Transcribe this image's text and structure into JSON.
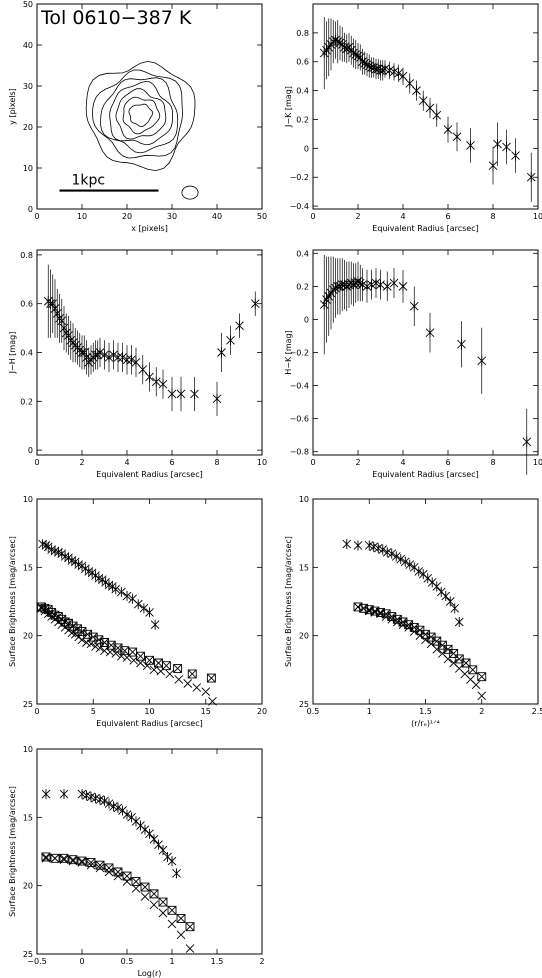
{
  "chart_data": [
    {
      "id": "p1",
      "type": "contour",
      "title": "Tol 0610−387 K",
      "xlabel": "x [pixels]",
      "ylabel": "y [pixels]",
      "xlim": [
        0,
        50
      ],
      "ylim": [
        0,
        50
      ],
      "xticks": [
        0,
        10,
        20,
        30,
        40,
        50
      ],
      "yticks": [
        0,
        10,
        20,
        30,
        40,
        50
      ],
      "scalebar": {
        "label": "1kpc",
        "x": [
          5,
          27
        ],
        "y": 4.5
      },
      "center": [
        23,
        23
      ],
      "contour_radii": [
        2.5,
        4,
        5.5,
        7,
        8.5,
        10,
        12
      ],
      "blobs": [
        {
          "cx": 34,
          "cy": 4,
          "rx": 1.8,
          "ry": 1.6
        }
      ]
    },
    {
      "id": "p2",
      "type": "scatter",
      "xlabel": "Equivalent Radius [arcsec]",
      "ylabel": "J−K [mag]",
      "xlim": [
        0,
        10
      ],
      "ylim": [
        -0.42,
        1.0
      ],
      "xticks": [
        0,
        2,
        4,
        6,
        8,
        10
      ],
      "yticks": [
        -0.4,
        -0.2,
        0.0,
        0.2,
        0.4,
        0.6,
        0.8
      ],
      "x": [
        0.5,
        0.6,
        0.7,
        0.8,
        0.9,
        1.0,
        1.1,
        1.2,
        1.3,
        1.4,
        1.5,
        1.6,
        1.7,
        1.8,
        1.9,
        2.0,
        2.1,
        2.2,
        2.3,
        2.4,
        2.5,
        2.6,
        2.7,
        2.8,
        2.9,
        3.0,
        3.1,
        3.2,
        3.4,
        3.6,
        3.8,
        4.0,
        4.3,
        4.6,
        4.9,
        5.2,
        5.5,
        6.0,
        6.4,
        7.0,
        8.0,
        8.2,
        8.6,
        9.0,
        9.7
      ],
      "y": [
        0.66,
        0.68,
        0.7,
        0.72,
        0.74,
        0.75,
        0.74,
        0.73,
        0.72,
        0.7,
        0.69,
        0.7,
        0.68,
        0.66,
        0.65,
        0.64,
        0.63,
        0.6,
        0.59,
        0.58,
        0.57,
        0.56,
        0.56,
        0.55,
        0.55,
        0.54,
        0.54,
        0.55,
        0.54,
        0.53,
        0.52,
        0.5,
        0.45,
        0.4,
        0.33,
        0.28,
        0.23,
        0.13,
        0.08,
        0.02,
        -0.12,
        0.03,
        0.01,
        -0.05,
        -0.2
      ],
      "err": [
        0.25,
        0.2,
        0.2,
        0.18,
        0.15,
        0.13,
        0.15,
        0.12,
        0.12,
        0.1,
        0.1,
        0.1,
        0.1,
        0.1,
        0.1,
        0.09,
        0.09,
        0.09,
        0.08,
        0.08,
        0.08,
        0.07,
        0.07,
        0.07,
        0.07,
        0.07,
        0.07,
        0.06,
        0.06,
        0.06,
        0.06,
        0.06,
        0.07,
        0.07,
        0.07,
        0.07,
        0.08,
        0.09,
        0.1,
        0.12,
        0.13,
        0.15,
        0.12,
        0.12,
        0.17
      ]
    },
    {
      "id": "p3",
      "type": "scatter",
      "xlabel": "Equivalent Radius [arcsec]",
      "ylabel": "J−H [mag]",
      "xlim": [
        0,
        10
      ],
      "ylim": [
        -0.02,
        0.82
      ],
      "xticks": [
        0,
        2,
        4,
        6,
        8,
        10
      ],
      "yticks": [
        0.0,
        0.2,
        0.4,
        0.6,
        0.8
      ],
      "x": [
        0.5,
        0.6,
        0.7,
        0.8,
        0.9,
        1.0,
        1.1,
        1.2,
        1.3,
        1.4,
        1.5,
        1.6,
        1.7,
        1.8,
        1.9,
        2.0,
        2.1,
        2.2,
        2.3,
        2.4,
        2.5,
        2.6,
        2.7,
        2.8,
        3.0,
        3.2,
        3.4,
        3.6,
        3.8,
        4.0,
        4.2,
        4.4,
        4.7,
        5.0,
        5.3,
        5.6,
        6.0,
        6.4,
        7.0,
        8.0,
        8.2,
        8.6,
        9.0,
        9.7
      ],
      "y": [
        0.61,
        0.6,
        0.6,
        0.58,
        0.56,
        0.54,
        0.53,
        0.5,
        0.48,
        0.47,
        0.45,
        0.44,
        0.43,
        0.42,
        0.41,
        0.4,
        0.4,
        0.38,
        0.36,
        0.37,
        0.38,
        0.39,
        0.39,
        0.4,
        0.39,
        0.38,
        0.39,
        0.38,
        0.38,
        0.37,
        0.37,
        0.36,
        0.33,
        0.3,
        0.28,
        0.27,
        0.23,
        0.23,
        0.23,
        0.21,
        0.4,
        0.45,
        0.51,
        0.6
      ],
      "err": [
        0.15,
        0.14,
        0.12,
        0.12,
        0.1,
        0.1,
        0.09,
        0.09,
        0.08,
        0.08,
        0.08,
        0.08,
        0.07,
        0.07,
        0.07,
        0.07,
        0.07,
        0.07,
        0.06,
        0.06,
        0.06,
        0.06,
        0.06,
        0.06,
        0.06,
        0.06,
        0.06,
        0.06,
        0.06,
        0.06,
        0.06,
        0.06,
        0.06,
        0.06,
        0.06,
        0.06,
        0.07,
        0.07,
        0.07,
        0.07,
        0.08,
        0.06,
        0.05,
        0.05
      ]
    },
    {
      "id": "p4",
      "type": "scatter",
      "xlabel": "Equivalent Radius [arcsec]",
      "ylabel": "H−K [mag]",
      "xlim": [
        0,
        10
      ],
      "ylim": [
        -0.82,
        0.42
      ],
      "xticks": [
        0,
        2,
        4,
        6,
        8,
        10
      ],
      "yticks": [
        -0.8,
        -0.6,
        -0.4,
        -0.2,
        0.0,
        0.2,
        0.4
      ],
      "x": [
        0.5,
        0.6,
        0.7,
        0.8,
        0.9,
        1.0,
        1.1,
        1.2,
        1.3,
        1.4,
        1.5,
        1.6,
        1.7,
        1.8,
        1.9,
        2.0,
        2.1,
        2.2,
        2.4,
        2.6,
        2.8,
        3.0,
        3.3,
        3.6,
        4.0,
        4.5,
        5.2,
        6.6,
        7.5,
        9.5
      ],
      "y": [
        0.09,
        0.12,
        0.14,
        0.16,
        0.18,
        0.19,
        0.2,
        0.2,
        0.21,
        0.21,
        0.2,
        0.21,
        0.22,
        0.21,
        0.22,
        0.23,
        0.22,
        0.21,
        0.2,
        0.21,
        0.22,
        0.21,
        0.2,
        0.22,
        0.2,
        0.08,
        -0.08,
        -0.15,
        -0.25,
        -0.74
      ],
      "err": [
        0.3,
        0.26,
        0.24,
        0.22,
        0.2,
        0.18,
        0.17,
        0.17,
        0.16,
        0.15,
        0.15,
        0.14,
        0.13,
        0.13,
        0.12,
        0.12,
        0.11,
        0.1,
        0.1,
        0.09,
        0.09,
        0.09,
        0.09,
        0.09,
        0.1,
        0.12,
        0.12,
        0.14,
        0.2,
        0.2
      ]
    },
    {
      "id": "p5",
      "type": "scatter",
      "xlabel": "Equivalent Radius [arcsec]",
      "ylabel": "Surface Brightness [mag/arcsec]",
      "xlim": [
        0,
        20
      ],
      "ylim": [
        25,
        10
      ],
      "xticks": [
        0,
        5,
        10,
        15,
        20
      ],
      "yticks": [
        10,
        15,
        20,
        25
      ],
      "series": [
        {
          "marker": "asterisk",
          "x": [
            0.5,
            0.8,
            1.0,
            1.3,
            1.6,
            1.9,
            2.2,
            2.5,
            2.8,
            3.1,
            3.4,
            3.7,
            4.0,
            4.3,
            4.6,
            4.9,
            5.2,
            5.5,
            5.8,
            6.1,
            6.4,
            6.7,
            7.0,
            7.5,
            8.0,
            8.5,
            9.0,
            9.5,
            10.0,
            10.5
          ],
          "y": [
            13.3,
            13.4,
            13.5,
            13.7,
            13.8,
            13.9,
            14.0,
            14.2,
            14.3,
            14.5,
            14.6,
            14.8,
            14.9,
            15.1,
            15.3,
            15.4,
            15.6,
            15.8,
            15.9,
            16.1,
            16.3,
            16.4,
            16.6,
            16.8,
            17.1,
            17.3,
            17.7,
            18.0,
            18.3,
            19.2
          ]
        },
        {
          "marker": "cross",
          "x": [
            0.4,
            0.7,
            1.0,
            1.3,
            1.6,
            1.9,
            2.2,
            2.5,
            2.8,
            3.1,
            3.4,
            3.7,
            4.0,
            4.4,
            4.8,
            5.2,
            5.6,
            6.0,
            6.5,
            7.0,
            7.5,
            8.0,
            8.6,
            9.2,
            9.8,
            10.4,
            11.0,
            11.8,
            12.6,
            13.4,
            14.2,
            15.0,
            15.6
          ],
          "y": [
            18.0,
            18.2,
            18.4,
            18.6,
            18.8,
            19.0,
            19.2,
            19.4,
            19.6,
            19.8,
            19.9,
            20.1,
            20.3,
            20.5,
            20.6,
            20.8,
            20.9,
            21.1,
            21.2,
            21.3,
            21.5,
            21.6,
            21.8,
            22.0,
            22.2,
            22.5,
            22.6,
            22.8,
            23.2,
            23.5,
            23.8,
            24.1,
            24.8
          ]
        },
        {
          "marker": "box",
          "x": [
            0.4,
            0.7,
            1.0,
            1.3,
            1.6,
            1.9,
            2.2,
            2.5,
            2.8,
            3.2,
            3.6,
            4.0,
            4.5,
            5.0,
            5.5,
            6.0,
            6.6,
            7.2,
            7.8,
            8.5,
            9.2,
            10.0,
            10.8,
            11.5,
            12.5,
            13.8,
            15.5
          ],
          "y": [
            17.9,
            18.0,
            18.1,
            18.3,
            18.5,
            18.6,
            18.8,
            19.0,
            19.1,
            19.3,
            19.5,
            19.7,
            19.9,
            20.1,
            20.3,
            20.5,
            20.7,
            20.9,
            21.1,
            21.2,
            21.5,
            21.8,
            22.0,
            22.2,
            22.4,
            22.8,
            23.1
          ]
        }
      ]
    },
    {
      "id": "p6",
      "type": "scatter",
      "xlabel": "(r/rₑ)¹ᐟ⁴",
      "ylabel": "Surface Brightness [mag/arcsec]",
      "xlim": [
        0.5,
        2.5
      ],
      "ylim": [
        25,
        10
      ],
      "xticks": [
        0.5,
        1.0,
        1.5,
        2.0,
        2.5
      ],
      "yticks": [
        10,
        15,
        20,
        25
      ],
      "series": [
        {
          "marker": "asterisk",
          "x": [
            0.8,
            0.9,
            1.0,
            1.04,
            1.08,
            1.12,
            1.16,
            1.2,
            1.24,
            1.28,
            1.32,
            1.36,
            1.4,
            1.44,
            1.48,
            1.52,
            1.56,
            1.6,
            1.64,
            1.68,
            1.72,
            1.76,
            1.8
          ],
          "y": [
            13.3,
            13.4,
            13.4,
            13.5,
            13.6,
            13.7,
            13.9,
            14.0,
            14.2,
            14.4,
            14.6,
            14.8,
            15.0,
            15.3,
            15.5,
            15.8,
            16.1,
            16.4,
            16.8,
            17.1,
            17.5,
            18.0,
            19.0
          ]
        },
        {
          "marker": "cross",
          "x": [
            0.9,
            0.95,
            1.0,
            1.05,
            1.1,
            1.15,
            1.2,
            1.25,
            1.3,
            1.35,
            1.4,
            1.45,
            1.5,
            1.55,
            1.6,
            1.65,
            1.7,
            1.75,
            1.8,
            1.85,
            1.9,
            1.95,
            2.0
          ],
          "y": [
            17.9,
            18.0,
            18.2,
            18.3,
            18.4,
            18.6,
            18.8,
            19.0,
            19.2,
            19.4,
            19.7,
            20.0,
            20.3,
            20.6,
            21.0,
            21.3,
            21.7,
            22.0,
            22.4,
            22.8,
            23.2,
            23.6,
            24.4
          ]
        },
        {
          "marker": "box",
          "x": [
            0.9,
            0.95,
            1.0,
            1.05,
            1.1,
            1.15,
            1.2,
            1.25,
            1.3,
            1.35,
            1.4,
            1.45,
            1.5,
            1.55,
            1.6,
            1.65,
            1.7,
            1.75,
            1.8,
            1.86,
            1.92,
            2.0
          ],
          "y": [
            17.9,
            18.0,
            18.1,
            18.2,
            18.3,
            18.4,
            18.6,
            18.8,
            19.0,
            19.2,
            19.4,
            19.6,
            19.9,
            20.1,
            20.4,
            20.7,
            21.0,
            21.3,
            21.7,
            22.0,
            22.5,
            23.0
          ]
        }
      ]
    },
    {
      "id": "p7",
      "type": "scatter",
      "xlabel": "Log(r)",
      "ylabel": "Surface Brightness [mag/arcsec]",
      "xlim": [
        -0.5,
        2.0
      ],
      "ylim": [
        25,
        10
      ],
      "xticks": [
        -0.5,
        0.0,
        0.5,
        1.0,
        1.5,
        2.0
      ],
      "yticks": [
        10,
        15,
        20,
        25
      ],
      "series": [
        {
          "marker": "asterisk",
          "x": [
            -0.4,
            -0.2,
            0.0,
            0.05,
            0.1,
            0.15,
            0.2,
            0.25,
            0.3,
            0.35,
            0.4,
            0.45,
            0.5,
            0.55,
            0.6,
            0.65,
            0.7,
            0.75,
            0.8,
            0.85,
            0.9,
            0.95,
            1.0,
            1.05
          ],
          "y": [
            13.3,
            13.3,
            13.3,
            13.4,
            13.5,
            13.6,
            13.7,
            13.8,
            14.0,
            14.2,
            14.3,
            14.5,
            14.8,
            15.0,
            15.3,
            15.6,
            15.9,
            16.2,
            16.6,
            17.0,
            17.4,
            17.9,
            18.2,
            19.1
          ]
        },
        {
          "marker": "cross",
          "x": [
            -0.4,
            -0.3,
            -0.2,
            -0.1,
            0.0,
            0.1,
            0.2,
            0.3,
            0.4,
            0.5,
            0.6,
            0.7,
            0.8,
            0.9,
            1.0,
            1.1,
            1.2
          ],
          "y": [
            18.0,
            18.0,
            18.1,
            18.2,
            18.3,
            18.5,
            18.7,
            19.0,
            19.3,
            19.7,
            20.2,
            20.8,
            21.4,
            22.0,
            22.8,
            23.6,
            24.6
          ]
        },
        {
          "marker": "box",
          "x": [
            -0.4,
            -0.3,
            -0.2,
            -0.1,
            0.0,
            0.1,
            0.2,
            0.3,
            0.4,
            0.5,
            0.6,
            0.7,
            0.8,
            0.9,
            1.0,
            1.1,
            1.2
          ],
          "y": [
            17.9,
            18.0,
            18.0,
            18.1,
            18.2,
            18.3,
            18.5,
            18.7,
            19.0,
            19.3,
            19.7,
            20.1,
            20.6,
            21.2,
            21.8,
            22.4,
            23.0
          ]
        }
      ]
    }
  ]
}
